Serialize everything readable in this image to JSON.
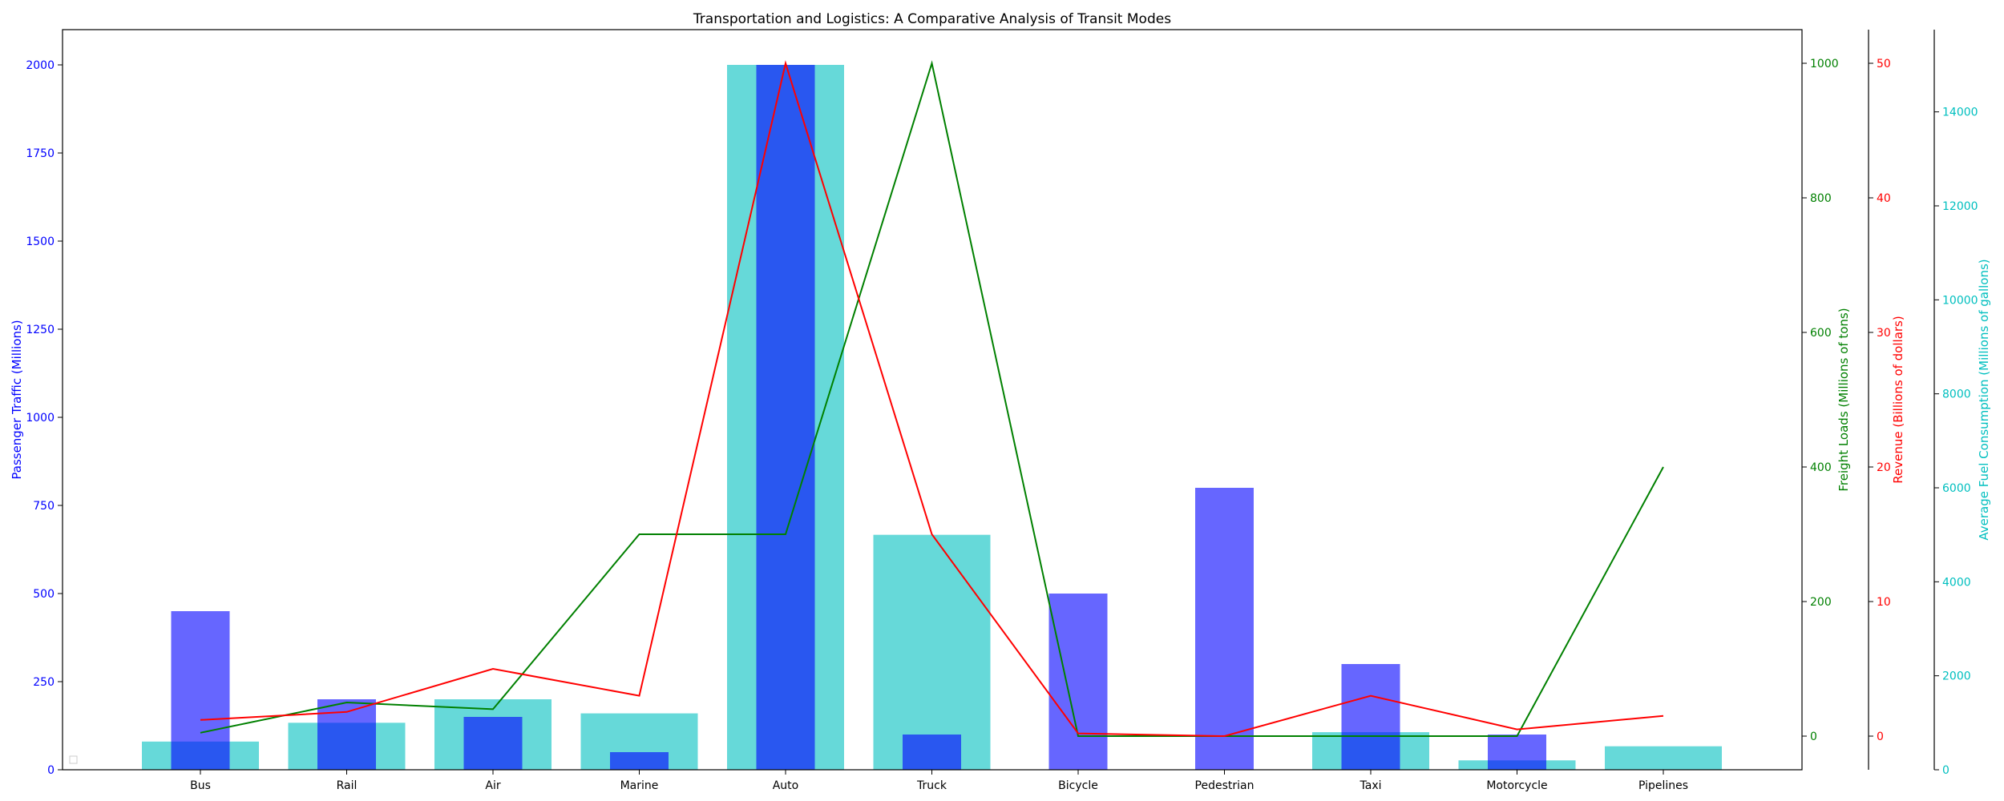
{
  "chart_data": {
    "type": "bar",
    "title": "Transportation and Logistics: A Comparative Analysis of Transit Modes",
    "categories": [
      "Bus",
      "Rail",
      "Air",
      "Marine",
      "Auto",
      "Truck",
      "Bicycle",
      "Pedestrian",
      "Taxi",
      "Motorcycle",
      "Pipelines"
    ],
    "series": [
      {
        "name": "Passenger Traffic (Millions)",
        "kind": "bar",
        "axis": "y1",
        "color": "#0000ff",
        "values": [
          450,
          200,
          150,
          50,
          2000,
          100,
          500,
          800,
          300,
          100,
          0
        ]
      },
      {
        "name": "Freight Loads (Millions of tons)",
        "kind": "line",
        "axis": "y2",
        "color": "#008000",
        "values": [
          5,
          50,
          40,
          300,
          300,
          1000,
          0,
          0,
          0,
          0,
          400
        ]
      },
      {
        "name": "Revenue (Billions of dollars)",
        "kind": "line",
        "axis": "y3",
        "color": "#ff0000",
        "values": [
          1.2,
          1.8,
          5,
          3,
          50,
          15,
          0.2,
          0,
          3,
          0.5,
          1.5
        ]
      },
      {
        "name": "Average Fuel Consumption (Millions of gallons)",
        "kind": "bar",
        "axis": "y4",
        "color": "#00bfbf",
        "values": [
          600,
          1000,
          1500,
          1200,
          15000,
          5000,
          0,
          0,
          800,
          200,
          500
        ]
      }
    ],
    "axes": {
      "y1": {
        "label": "Passenger Traffic (Millions)",
        "ylim": [
          0,
          2100
        ],
        "ticks": [
          0,
          250,
          500,
          750,
          1000,
          1250,
          1500,
          1750,
          2000
        ],
        "color": "#0000ff"
      },
      "y2": {
        "label": "Freight Loads (Millions of tons)",
        "ylim": [
          -50,
          1050
        ],
        "ticks": [
          0,
          200,
          400,
          600,
          800,
          1000
        ],
        "color": "#008000"
      },
      "y3": {
        "label": "Revenue (Billions of dollars)",
        "ylim": [
          -2.5,
          52.5
        ],
        "ticks": [
          0,
          10,
          20,
          30,
          40,
          50
        ],
        "color": "#ff0000"
      },
      "y4": {
        "label": "Average Fuel Consumption (Millions of gallons)",
        "ylim": [
          0,
          15750
        ],
        "ticks": [
          0,
          2000,
          4000,
          6000,
          8000,
          10000,
          12000,
          14000
        ],
        "color": "#00bfbf"
      }
    },
    "grid": false,
    "legend": "lower-left"
  }
}
